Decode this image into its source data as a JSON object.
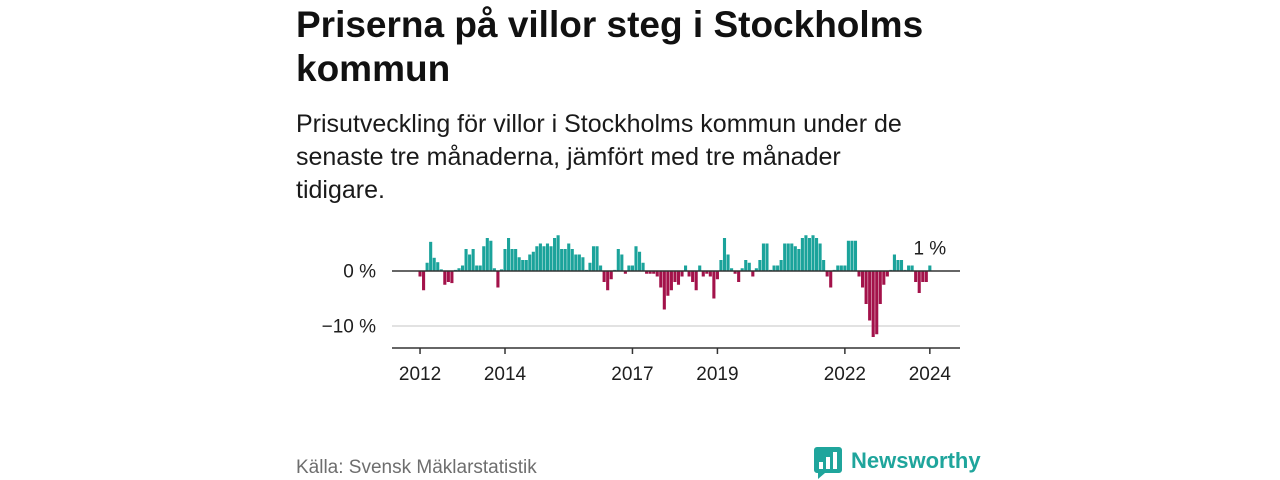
{
  "chart_data": {
    "type": "bar",
    "title": "Priserna på villor steg i Stockholms kommun",
    "subtitle": "Prisutveckling för villor i Stockholms kommun under de senaste tre månaderna, jämfört med tre månader tidigare.",
    "start": {
      "year": 2012,
      "month": 1
    },
    "values": [
      -1,
      -3.5,
      1.5,
      5.3,
      2.4,
      1.6,
      0.3,
      -2.5,
      -2,
      -2.2,
      0.2,
      0.5,
      1,
      4,
      3,
      4,
      1,
      1,
      4.5,
      6,
      5.5,
      0.5,
      -3,
      0.3,
      4,
      6,
      4,
      4,
      2.5,
      2,
      2,
      3,
      3.5,
      4.5,
      5,
      4.5,
      5,
      4.5,
      6,
      6.5,
      4,
      4,
      5,
      4,
      3,
      3,
      2.5,
      0.2,
      1.5,
      4.5,
      4.5,
      1,
      -2,
      -3.5,
      -1.5,
      0.2,
      4,
      3,
      -0.5,
      1,
      1,
      4.5,
      3.5,
      1.5,
      -0.5,
      -0.5,
      -0.5,
      -1,
      -3,
      -7,
      -4.5,
      -3.5,
      -2,
      -2.5,
      -1,
      1,
      -1,
      -2,
      -3.5,
      1,
      -1,
      -0.5,
      -1,
      -5,
      -1.5,
      2,
      6,
      3,
      0.5,
      -0.5,
      -2,
      0.5,
      2,
      1.5,
      -1,
      0.5,
      2,
      5,
      5,
      0.2,
      1,
      1,
      2,
      5,
      5,
      5,
      4.5,
      4,
      6,
      6.5,
      6,
      6.5,
      6,
      5,
      2,
      -1,
      -3,
      0.2,
      1,
      1,
      1,
      5.5,
      5.5,
      5.5,
      -1,
      -3,
      -6,
      -9,
      -12,
      -11.5,
      -6,
      -2.5,
      -1,
      0.2,
      3,
      2,
      2,
      0.2,
      1,
      1,
      -2,
      -4,
      -2,
      -2,
      1
    ],
    "ylim": [
      -14,
      7.5
    ],
    "xlim": [
      2011.34,
      2024.71
    ],
    "yticks": [
      {
        "value": 0,
        "label": "0 %"
      },
      {
        "value": -10,
        "label": "−10 %"
      }
    ],
    "xticks": [
      {
        "year": 2012,
        "label": "2012"
      },
      {
        "year": 2014,
        "label": "2014"
      },
      {
        "year": 2017,
        "label": "2017"
      },
      {
        "year": 2019,
        "label": "2019"
      },
      {
        "year": 2022,
        "label": "2022"
      },
      {
        "year": 2024,
        "label": "2024"
      }
    ],
    "annotation": {
      "label": "1 %",
      "value": 1
    },
    "grid": true
  },
  "footer": {
    "source": "Källa: Svensk Mäklarstatistik",
    "brand": "Newsworthy",
    "brand_icon": "newsworthy-logo-icon"
  },
  "colors": {
    "positive": "#1ba39b",
    "negative": "#a3124a",
    "brand": "#1fa59c",
    "axis": "#333333",
    "grid": "#d9d9d9"
  }
}
